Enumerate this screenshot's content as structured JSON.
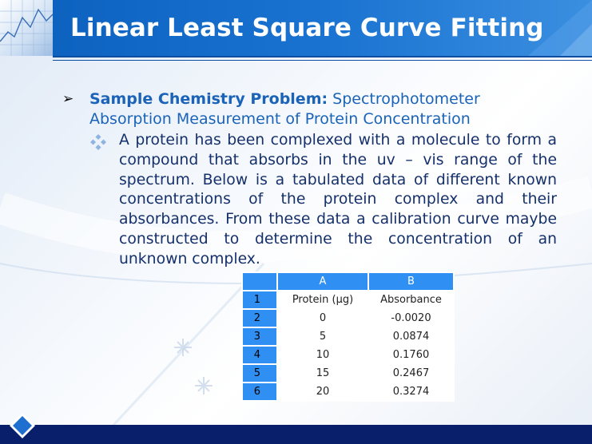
{
  "slide": {
    "title": "Linear Least Square Curve Fitting",
    "bullet_label": "Sample Chemistry Problem:",
    "bullet_rest": " Spectrophotometer Absorption Measurement of Protein Concentration",
    "paragraph": "A protein has been complexed with a molecule to form a compound that absorbs in the uv – vis range of the spectrum. Below is a tabulated data of different known concentrations of the protein complex and their absorbances. From these data a calibration curve maybe constructed to determine the concentration of an unknown complex."
  },
  "table": {
    "col_letters": [
      "A",
      "B"
    ],
    "rows": [
      {
        "num": "1",
        "a": "Protein (μg)",
        "b": "Absorbance"
      },
      {
        "num": "2",
        "a": "0",
        "b": "-0.0020"
      },
      {
        "num": "3",
        "a": "5",
        "b": "0.0874"
      },
      {
        "num": "4",
        "a": "10",
        "b": "0.1760"
      },
      {
        "num": "5",
        "a": "15",
        "b": "0.2467"
      },
      {
        "num": "6",
        "a": "20",
        "b": "0.3274"
      }
    ]
  },
  "colors": {
    "title_bar": "#1a73d1",
    "heading_blue": "#1a63b8",
    "body_text": "#15306b",
    "table_header": "#2f8ff2",
    "bottom_bar": "#0a1f6b"
  },
  "icons": [
    "arrow-bullet-icon",
    "diamond-bullet-icon",
    "corner-diamond-icon"
  ]
}
